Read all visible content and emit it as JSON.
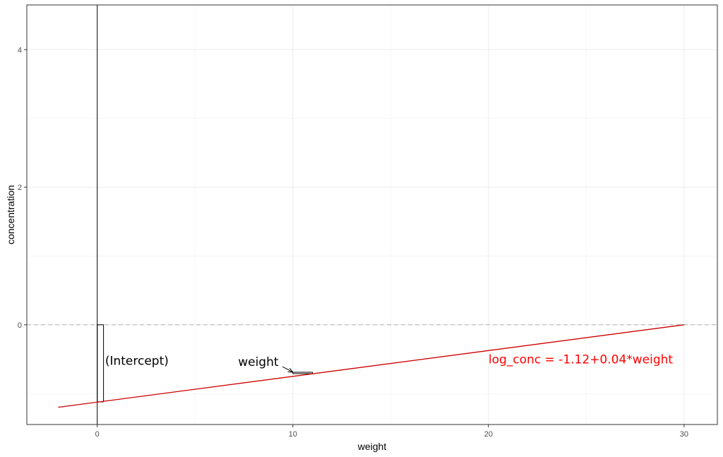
{
  "chart_data": {
    "type": "line",
    "title": "",
    "xlabel": "weight",
    "ylabel": "concentration",
    "xlim": [
      -3.6,
      31.7
    ],
    "ylim": [
      -1.45,
      4.65
    ],
    "x_ticks": [
      0,
      10,
      20,
      30
    ],
    "y_ticks": [
      0,
      2,
      4
    ],
    "x_tick_labels": [
      "0",
      "10",
      "20",
      "30"
    ],
    "y_tick_labels": [
      "0",
      "2",
      "4"
    ],
    "grid": true,
    "series": [
      {
        "type": "line",
        "color": "#cc0000",
        "x": [
          -2,
          30
        ],
        "y": [
          -1.2,
          0
        ]
      }
    ],
    "reference_lines": [
      {
        "orientation": "horizontal",
        "y": 0,
        "style": "dashed",
        "color": "#b3b3b3"
      },
      {
        "orientation": "vertical",
        "x": 0,
        "style": "solid",
        "color": "#000000"
      }
    ],
    "coefficient_bars": [
      {
        "name": "(Intercept)",
        "x": 0,
        "y_from": 0,
        "y_to": -1.12
      },
      {
        "name": "weight",
        "x_from": 10,
        "x_to": 11,
        "y": -0.69
      }
    ],
    "annotations": [
      {
        "label": "(Intercept)",
        "x": 0.4,
        "y": -0.58,
        "color": "#000000"
      },
      {
        "label": "weight",
        "x": 7.2,
        "y": -0.6,
        "color": "#000000",
        "arrow_to": [
          10,
          -0.69
        ]
      },
      {
        "label": "log_conc = -1.12+0.04*weight",
        "x": 20,
        "y": -0.56,
        "color": "#ff0000"
      }
    ]
  }
}
